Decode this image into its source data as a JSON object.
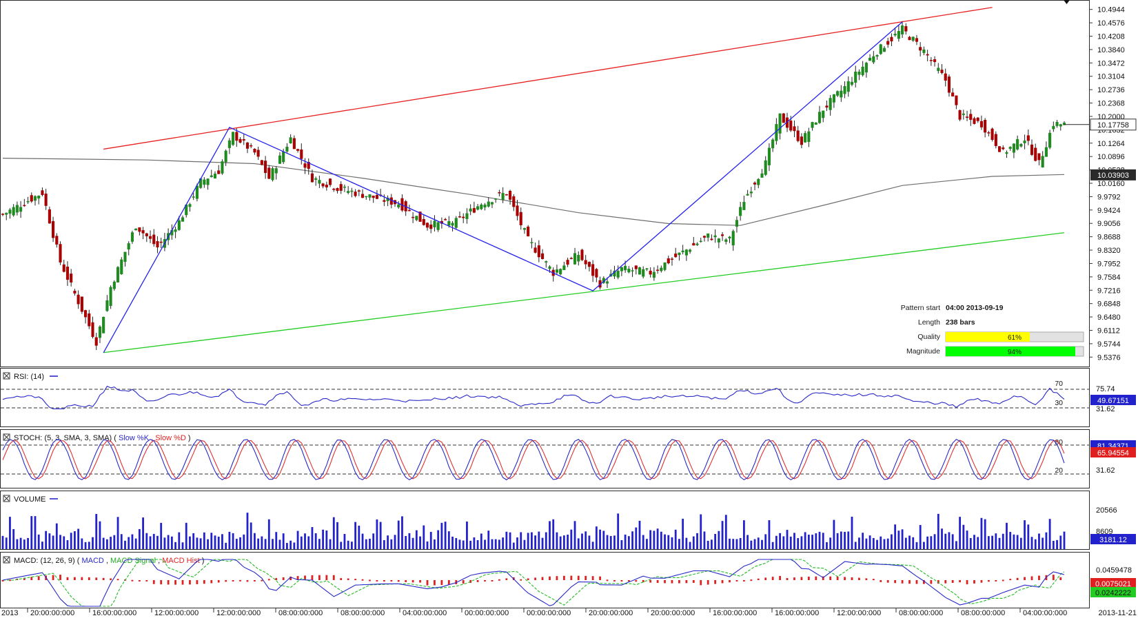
{
  "chart_data": {
    "type": "candlestick",
    "price_panel": {
      "ylim": [
        9.5192,
        10.5128
      ],
      "y_ticks": [
        "10.4944",
        "10.4576",
        "10.4208",
        "10.3840",
        "10.3472",
        "10.3104",
        "10.2736",
        "10.2368",
        "10.2000",
        "10.1632",
        "10.1264",
        "10.0896",
        "10.0528",
        "10.0160",
        "9.9792",
        "9.9424",
        "9.9056",
        "9.8688",
        "9.8320",
        "9.7952",
        "9.7584",
        "9.7216",
        "9.6848",
        "9.6480",
        "9.6112",
        "9.5744",
        "9.5376"
      ],
      "current_price": "10.17758",
      "sma_value": "10.03903",
      "pattern_info": {
        "start_label": "Pattern start",
        "start_value": "04:00 2013-09-19",
        "length_label": "Length",
        "length_value": "238 bars",
        "quality_label": "Quality",
        "quality_pct": 61,
        "quality_text": "61%",
        "magnitude_label": "Magnitude",
        "magnitude_pct": 94,
        "magnitude_text": "94%"
      },
      "anchors": [
        {
          "bar": 0,
          "close": 9.93
        },
        {
          "bar": 11,
          "close": 9.99
        },
        {
          "bar": 16,
          "close": 9.8
        },
        {
          "bar": 26,
          "close": 9.58
        },
        {
          "bar": 30,
          "close": 9.73
        },
        {
          "bar": 37,
          "close": 9.9
        },
        {
          "bar": 43,
          "close": 9.84
        },
        {
          "bar": 49,
          "close": 9.91
        },
        {
          "bar": 55,
          "close": 10.02
        },
        {
          "bar": 60,
          "close": 10.05
        },
        {
          "bar": 64,
          "close": 10.15
        },
        {
          "bar": 70,
          "close": 10.1
        },
        {
          "bar": 74,
          "close": 10.03
        },
        {
          "bar": 80,
          "close": 10.14
        },
        {
          "bar": 86,
          "close": 10.03
        },
        {
          "bar": 94,
          "close": 10.0
        },
        {
          "bar": 102,
          "close": 9.98
        },
        {
          "bar": 110,
          "close": 9.96
        },
        {
          "bar": 118,
          "close": 9.9
        },
        {
          "bar": 126,
          "close": 9.91
        },
        {
          "bar": 133,
          "close": 9.96
        },
        {
          "bar": 140,
          "close": 9.99
        },
        {
          "bar": 146,
          "close": 9.86
        },
        {
          "bar": 153,
          "close": 9.77
        },
        {
          "bar": 160,
          "close": 9.82
        },
        {
          "bar": 166,
          "close": 9.74
        },
        {
          "bar": 172,
          "close": 9.78
        },
        {
          "bar": 180,
          "close": 9.77
        },
        {
          "bar": 188,
          "close": 9.82
        },
        {
          "bar": 196,
          "close": 9.87
        },
        {
          "bar": 202,
          "close": 9.86
        },
        {
          "bar": 206,
          "close": 9.97
        },
        {
          "bar": 212,
          "close": 10.07
        },
        {
          "bar": 216,
          "close": 10.2
        },
        {
          "bar": 222,
          "close": 10.13
        },
        {
          "bar": 228,
          "close": 10.22
        },
        {
          "bar": 234,
          "close": 10.28
        },
        {
          "bar": 242,
          "close": 10.37
        },
        {
          "bar": 250,
          "close": 10.44
        },
        {
          "bar": 256,
          "close": 10.38
        },
        {
          "bar": 262,
          "close": 10.3
        },
        {
          "bar": 266,
          "close": 10.2
        },
        {
          "bar": 272,
          "close": 10.18
        },
        {
          "bar": 278,
          "close": 10.1
        },
        {
          "bar": 284,
          "close": 10.14
        },
        {
          "bar": 288,
          "close": 10.07
        },
        {
          "bar": 292,
          "close": 10.18
        },
        {
          "bar": 295,
          "close": 10.17758
        }
      ],
      "pattern_lines": [
        {
          "name": "resistance",
          "color": "#e82020",
          "from": [
            28,
            10.11
          ],
          "to": [
            275,
            10.5
          ]
        },
        {
          "name": "support",
          "color": "#22cc22",
          "from": [
            28,
            9.55
          ],
          "to": [
            295,
            9.88
          ]
        },
        {
          "name": "zigzag",
          "color": "#2222ee",
          "points": [
            [
              28,
              9.55
            ],
            [
              63,
              10.17
            ],
            [
              164,
              9.72
            ],
            [
              250,
              10.46
            ]
          ]
        }
      ],
      "sma_line": [
        [
          0,
          10.085
        ],
        [
          40,
          10.08
        ],
        [
          70,
          10.07
        ],
        [
          100,
          10.03
        ],
        [
          130,
          9.985
        ],
        [
          160,
          9.935
        ],
        [
          185,
          9.905
        ],
        [
          205,
          9.9
        ],
        [
          230,
          9.96
        ],
        [
          250,
          10.01
        ],
        [
          275,
          10.035
        ],
        [
          295,
          10.04
        ]
      ]
    },
    "rsi_panel": {
      "title": "RSI: (14)",
      "levels": [
        "70",
        "30"
      ],
      "scale_labels": [
        "75.74",
        "31.62"
      ],
      "current": "49.67151"
    },
    "stoch_panel": {
      "title": "STOCH: (5, 3, SMA, 3, SMA)",
      "series_k": "Slow %K",
      "series_d": "Slow %D",
      "levels": [
        "80",
        "20"
      ],
      "scale_labels": [
        "31.62"
      ],
      "current_k": "81.34371",
      "current_d": "65.94554"
    },
    "volume_panel": {
      "title": "VOLUME",
      "scale_labels": [
        "20566",
        "8609"
      ],
      "current": "3181.12"
    },
    "macd_panel": {
      "title": "MACD: (12, 26, 9)",
      "series_macd": "MACD",
      "series_signal": "MACD Signal",
      "series_hist": "MACD Hist",
      "scale_labels": [
        "0.0459478"
      ],
      "current_signal": "0.0075021",
      "current_macd": "0.0242222"
    },
    "x_axis": {
      "first": "2013",
      "last": "2013-11-21",
      "ticks": [
        "20:00:00:000",
        "16:00:00:000",
        "12:00:00:000",
        "12:00:00:000",
        "08:00:00:000",
        "08:00:00:000",
        "04:00:00:000",
        "00:00:00:000",
        "00:00:00:000",
        "20:00:00:000",
        "20:00:00:000",
        "16:00:00:000",
        "16:00:00:000",
        "12:00:00:000",
        "08:00:00:000",
        "08:00:00:000",
        "04:00:00:000"
      ]
    },
    "colors": {
      "bull": "#1f8a1f",
      "bear": "#a80000",
      "blue": "#2828c8",
      "red": "#e03030",
      "green": "#22cc22",
      "sma": "#6e6e6e"
    }
  }
}
